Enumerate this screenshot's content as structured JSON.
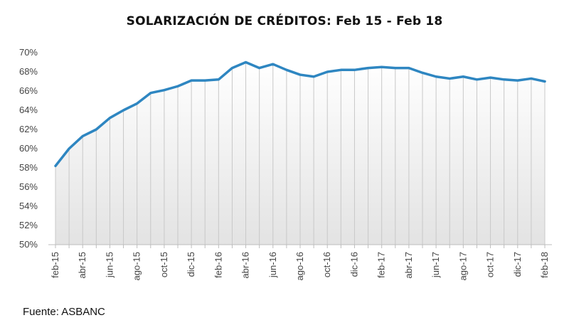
{
  "chart_data": {
    "type": "area",
    "title": "SOLARIZACIÓN DE CRÉDITOS: Feb 15 - Feb 18",
    "xlabel": "",
    "ylabel": "",
    "ylim": [
      50,
      70
    ],
    "y_ticks": [
      "50%",
      "52%",
      "54%",
      "56%",
      "58%",
      "60%",
      "62%",
      "64%",
      "66%",
      "68%",
      "70%"
    ],
    "grid": "vertical lines at each month",
    "legend": "none",
    "line_color": "#2E86C1",
    "x_labels": [
      "feb-15",
      "abr-15",
      "jun-15",
      "ago-15",
      "oct-15",
      "dic-15",
      "feb-16",
      "abr-16",
      "jun-16",
      "ago-16",
      "oct-16",
      "dic-16",
      "feb-17",
      "abr-17",
      "jun-17",
      "ago-17",
      "oct-17",
      "dic-17",
      "feb-18"
    ],
    "x": [
      "feb-15",
      "mar-15",
      "abr-15",
      "may-15",
      "jun-15",
      "jul-15",
      "ago-15",
      "sep-15",
      "oct-15",
      "nov-15",
      "dic-15",
      "ene-16",
      "feb-16",
      "mar-16",
      "abr-16",
      "may-16",
      "jun-16",
      "jul-16",
      "ago-16",
      "sep-16",
      "oct-16",
      "nov-16",
      "dic-16",
      "ene-17",
      "feb-17",
      "mar-17",
      "abr-17",
      "may-17",
      "jun-17",
      "jul-17",
      "ago-17",
      "sep-17",
      "oct-17",
      "nov-17",
      "dic-17",
      "ene-18",
      "feb-18"
    ],
    "values": [
      58.2,
      60.0,
      61.3,
      62.0,
      63.2,
      64.0,
      64.7,
      65.8,
      66.1,
      66.5,
      67.1,
      67.1,
      67.2,
      68.4,
      69.0,
      68.4,
      68.8,
      68.2,
      67.7,
      67.5,
      68.0,
      68.2,
      68.2,
      68.4,
      68.5,
      68.4,
      68.4,
      67.9,
      67.5,
      67.3,
      67.5,
      67.2,
      67.4,
      67.2,
      67.1,
      67.3,
      67.0
    ]
  },
  "footer": {
    "source": "Fuente: ASBANC"
  }
}
